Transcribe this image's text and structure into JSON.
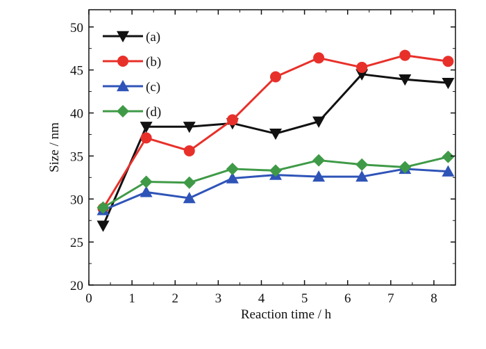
{
  "chart_data": {
    "type": "line",
    "xlabel": "Reaction time / h",
    "ylabel": "Size / nm",
    "xlim": [
      0,
      8.5
    ],
    "ylim": [
      20,
      52
    ],
    "xticks": [
      0,
      1,
      2,
      3,
      4,
      5,
      6,
      7,
      8
    ],
    "yticks": [
      20,
      25,
      30,
      35,
      40,
      45,
      50
    ],
    "x": [
      0.33,
      1.33,
      2.33,
      3.33,
      4.33,
      5.33,
      6.33,
      7.33,
      8.33
    ],
    "legend_position": "top-left",
    "grid": false,
    "series": [
      {
        "name": "(a)",
        "color": "#111111",
        "marker": "triangle-down",
        "values": [
          26.9,
          38.4,
          38.4,
          38.8,
          37.6,
          39.0,
          44.5,
          43.9,
          43.5
        ]
      },
      {
        "name": "(b)",
        "color": "#e8302a",
        "marker": "circle",
        "values": [
          28.9,
          37.1,
          35.6,
          39.2,
          44.2,
          46.4,
          45.3,
          46.7,
          46.0
        ]
      },
      {
        "name": "(c)",
        "color": "#2f54b8",
        "marker": "triangle-up",
        "values": [
          28.7,
          30.8,
          30.1,
          32.4,
          32.8,
          32.6,
          32.6,
          33.5,
          33.2
        ]
      },
      {
        "name": "(d)",
        "color": "#3f9a47",
        "marker": "diamond",
        "values": [
          29.0,
          32.0,
          31.9,
          33.5,
          33.3,
          34.5,
          34.0,
          33.7,
          34.9
        ]
      }
    ]
  }
}
